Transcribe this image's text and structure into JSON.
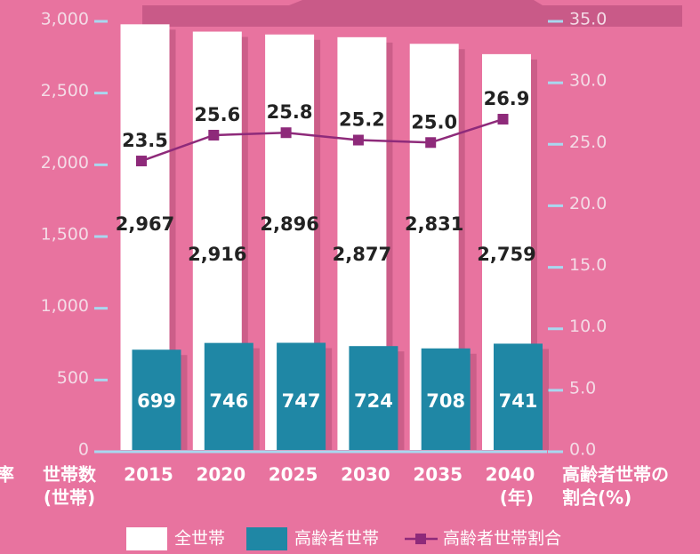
{
  "chart_data": {
    "type": "bar",
    "categories": [
      "2015",
      "2020",
      "2025",
      "2030",
      "2035",
      "2040"
    ],
    "series": [
      {
        "name": "全世帯",
        "type": "bar",
        "color": "#ffffff",
        "values": [
          2967,
          2916,
          2896,
          2877,
          2831,
          2759
        ],
        "value_labels": [
          "2,967",
          "2,916",
          "2,896",
          "2,877",
          "2,831",
          "2,759"
        ]
      },
      {
        "name": "高齢者世帯",
        "type": "bar",
        "color": "#1f87a5",
        "values": [
          699,
          746,
          747,
          724,
          708,
          741
        ]
      },
      {
        "name": "高齢者世帯割合",
        "type": "line",
        "axis": "y2",
        "color": "#8e2a7a",
        "values": [
          23.5,
          25.6,
          25.8,
          25.2,
          25.0,
          26.9
        ],
        "value_labels": [
          "23.5",
          "25.6",
          "25.8",
          "25.2",
          "25.0",
          "26.9"
        ]
      }
    ],
    "ylim": [
      0,
      3000
    ],
    "yticks": [
      0,
      500,
      {
        "value": 1000,
        "label": "1,000"
      },
      {
        "value": 1500,
        "label": "1,500"
      },
      {
        "value": 2000,
        "label": "2,000"
      },
      {
        "value": 2500,
        "label": "2,500"
      },
      {
        "value": 3000,
        "label": "3,000"
      }
    ],
    "y2lim": [
      0,
      35
    ],
    "y2ticks": [
      {
        "value": 0,
        "label": "0.0"
      },
      {
        "value": 5,
        "label": "5.0"
      },
      {
        "value": 10,
        "label": "10.0"
      },
      {
        "value": 15,
        "label": "15.0"
      },
      {
        "value": 20,
        "label": "20.0"
      },
      {
        "value": 25,
        "label": "25.0"
      },
      {
        "value": 30,
        "label": "30.0"
      },
      {
        "value": 35,
        "label": "35.0"
      }
    ],
    "left_edge_label": "率",
    "ylabel": [
      "世帯数",
      "(世帯)"
    ],
    "xunit": "(年)",
    "y2label": [
      "高齢者世帯の",
      "割合(%)"
    ]
  }
}
